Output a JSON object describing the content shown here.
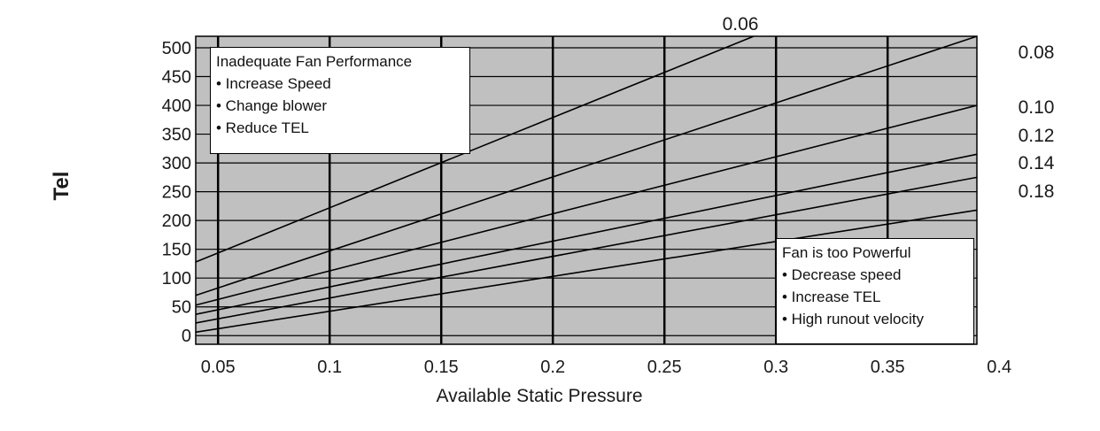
{
  "chart_data": {
    "type": "line",
    "xlabel": "Available Static Pressure",
    "ylabel": "Tel",
    "xlim": [
      0.04,
      0.39
    ],
    "ylim": [
      -15,
      520
    ],
    "x_ticks": [
      "0.05",
      "0.1",
      "0.15",
      "0.2",
      "0.25",
      "0.3",
      "0.35",
      "0.4"
    ],
    "y_ticks": [
      "0",
      "50",
      "100",
      "150",
      "200",
      "250",
      "300",
      "350",
      "400",
      "450",
      "500"
    ],
    "grid": true,
    "plot_background": "#c0c0c0",
    "series": [
      {
        "name": "0.06",
        "points": [
          [
            0.04,
            128
          ],
          [
            0.29,
            520
          ]
        ]
      },
      {
        "name": "0.08",
        "points": [
          [
            0.04,
            70
          ],
          [
            0.39,
            520
          ]
        ]
      },
      {
        "name": "0.10",
        "points": [
          [
            0.04,
            53
          ],
          [
            0.39,
            400
          ]
        ]
      },
      {
        "name": "0.12",
        "points": [
          [
            0.04,
            37
          ],
          [
            0.39,
            315
          ]
        ]
      },
      {
        "name": "0.14",
        "points": [
          [
            0.04,
            22
          ],
          [
            0.39,
            275
          ]
        ]
      },
      {
        "name": "0.18",
        "points": [
          [
            0.04,
            6
          ],
          [
            0.39,
            218
          ]
        ]
      }
    ],
    "annotations": [
      {
        "title": "Inadequate Fan Performance",
        "items": [
          "• Increase Speed",
          "• Change blower",
          "• Reduce TEL"
        ]
      },
      {
        "title": "Fan is too Powerful",
        "items": [
          "• Decrease speed",
          "• Increase TEL",
          "• High runout velocity"
        ]
      }
    ]
  }
}
